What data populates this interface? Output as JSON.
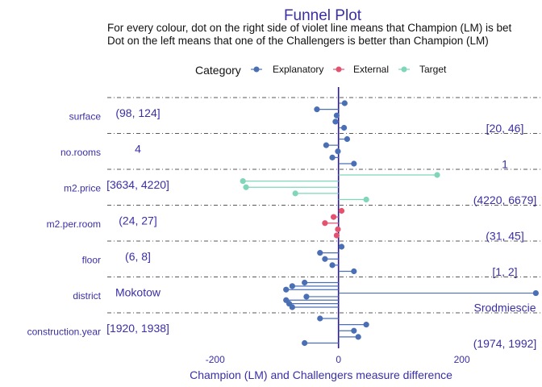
{
  "chart_data": {
    "type": "scatter",
    "title": "Funnel Plot",
    "subtitle_lines": [
      "For every colour, dot on the right side of violet line means that Champion (LM) is bet",
      "Dot on the left means that one of the Challengers is better than Champion (LM)"
    ],
    "xlabel": "Champion (LM) and Challengers measure difference",
    "xlim": [
      -375,
      330
    ],
    "xticks": [
      -200,
      0,
      200
    ],
    "grid": false,
    "legend": {
      "title": "Category",
      "position": "top",
      "entries": [
        {
          "label": "Explanatory",
          "color": "#4a6fb5"
        },
        {
          "label": "External",
          "color": "#e3536f"
        },
        {
          "label": "Target",
          "color": "#7fd6b8"
        }
      ]
    },
    "colors": {
      "zero_line": "#2a1a9e",
      "annotation": "#3a2fa6",
      "separator": "#222222"
    },
    "categories": [
      "surface",
      "no.rooms",
      "m2.price",
      "m2.per.room",
      "floor",
      "district",
      "construction.year"
    ],
    "groups": [
      {
        "variable": "surface",
        "left_label": "(98, 124]",
        "right_label": "[20, 46]",
        "points": [
          {
            "category": "Explanatory",
            "value": 10
          },
          {
            "category": "Explanatory",
            "value": -35
          },
          {
            "category": "Explanatory",
            "value": -3
          },
          {
            "category": "Explanatory",
            "value": -5
          },
          {
            "category": "Explanatory",
            "value": 9
          }
        ]
      },
      {
        "variable": "no.rooms",
        "left_label": "4",
        "right_label": "1",
        "points": [
          {
            "category": "Explanatory",
            "value": 14
          },
          {
            "category": "Explanatory",
            "value": -20
          },
          {
            "category": "Explanatory",
            "value": -1
          },
          {
            "category": "Explanatory",
            "value": -10
          },
          {
            "category": "Explanatory",
            "value": 25
          }
        ]
      },
      {
        "variable": "m2.price",
        "left_label": "[3634, 4220]",
        "right_label": "(4220, 6679]",
        "points": [
          {
            "category": "Target",
            "value": 160
          },
          {
            "category": "Target",
            "value": -155
          },
          {
            "category": "Target",
            "value": -150
          },
          {
            "category": "Target",
            "value": -70
          },
          {
            "category": "Target",
            "value": 45
          }
        ]
      },
      {
        "variable": "m2.per.room",
        "left_label": "(24, 27]",
        "right_label": "(31, 45]",
        "points": [
          {
            "category": "External",
            "value": 5
          },
          {
            "category": "External",
            "value": -8
          },
          {
            "category": "External",
            "value": -22
          },
          {
            "category": "External",
            "value": -1
          },
          {
            "category": "External",
            "value": -3
          }
        ]
      },
      {
        "variable": "floor",
        "left_label": "(6, 8]",
        "right_label": "[1, 2]",
        "points": [
          {
            "category": "Explanatory",
            "value": 5
          },
          {
            "category": "Explanatory",
            "value": -30
          },
          {
            "category": "Explanatory",
            "value": -22
          },
          {
            "category": "Explanatory",
            "value": -10
          },
          {
            "category": "Explanatory",
            "value": 25
          }
        ]
      },
      {
        "variable": "district",
        "left_label": "Mokotow",
        "right_label": "Srodmiescie",
        "points": [
          {
            "category": "Explanatory",
            "value": -55
          },
          {
            "category": "Explanatory",
            "value": -75
          },
          {
            "category": "Explanatory",
            "value": -85
          },
          {
            "category": "Explanatory",
            "value": 320
          },
          {
            "category": "Explanatory",
            "value": -52
          },
          {
            "category": "Explanatory",
            "value": -85
          },
          {
            "category": "Explanatory",
            "value": -80
          },
          {
            "category": "Explanatory",
            "value": -75
          }
        ]
      },
      {
        "variable": "construction.year",
        "left_label": "[1920, 1938]",
        "right_label": "(1974, 1992]",
        "points": [
          {
            "category": "Explanatory",
            "value": -30
          },
          {
            "category": "Explanatory",
            "value": 45
          },
          {
            "category": "Explanatory",
            "value": 25
          },
          {
            "category": "Explanatory",
            "value": 32
          },
          {
            "category": "Explanatory",
            "value": -55
          }
        ]
      }
    ]
  }
}
